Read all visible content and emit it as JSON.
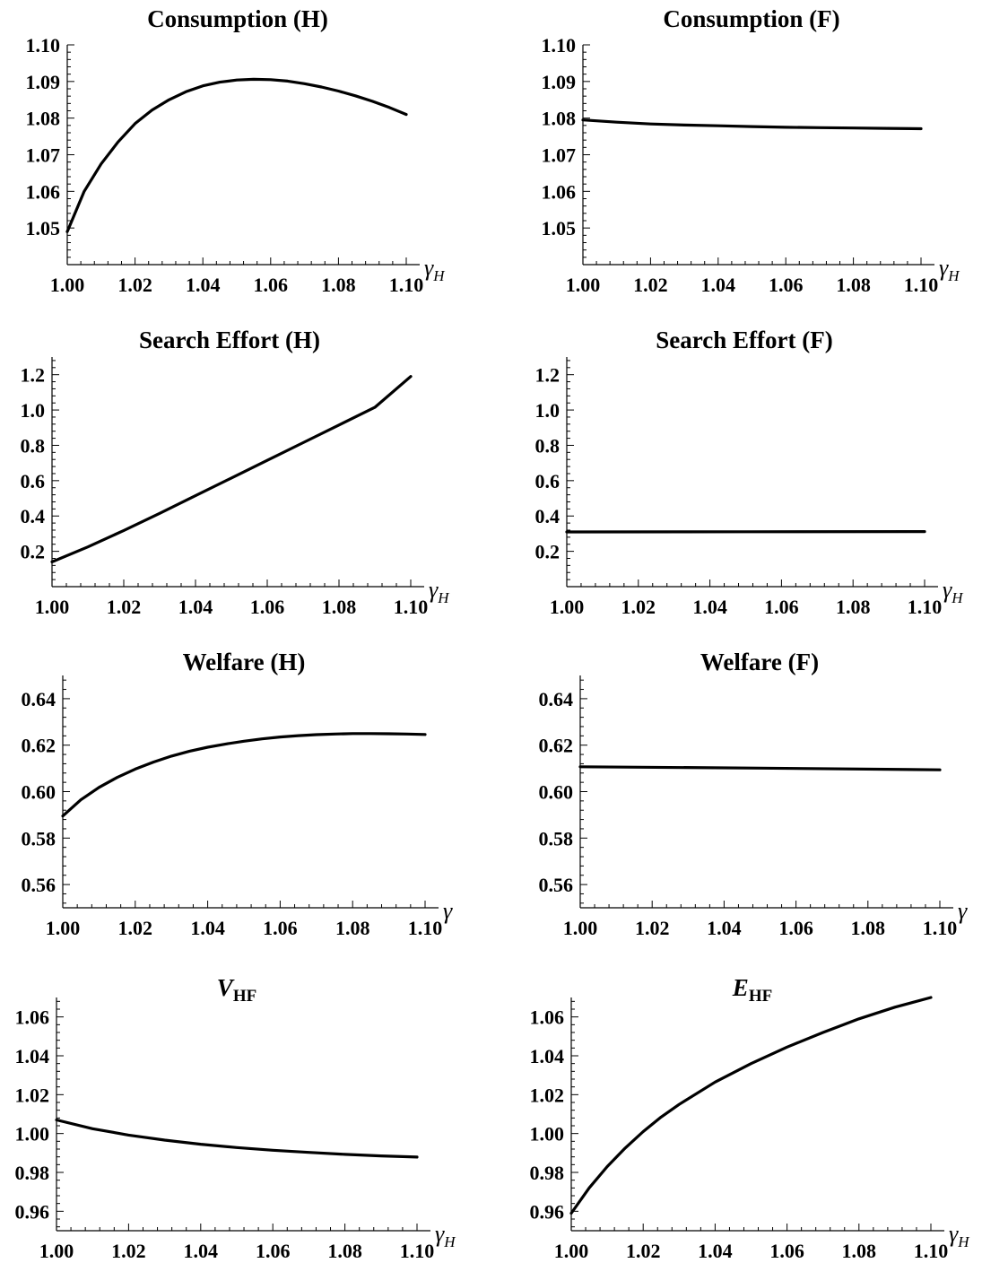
{
  "chart_data": [
    {
      "type": "line",
      "title": "Consumption (H)",
      "xlabel": {
        "main": "γ",
        "sub": "H"
      },
      "xlim": [
        1.0,
        1.1
      ],
      "ylim": [
        1.04,
        1.1
      ],
      "xticks": [
        "1.00",
        "1.02",
        "1.04",
        "1.06",
        "1.08",
        "1.10"
      ],
      "yticks": [
        "1.05",
        "1.06",
        "1.07",
        "1.08",
        "1.09",
        "1.10"
      ],
      "series": [
        {
          "x": [
            1.0,
            1.005,
            1.01,
            1.015,
            1.02,
            1.025,
            1.03,
            1.035,
            1.04,
            1.045,
            1.05,
            1.055,
            1.06,
            1.065,
            1.07,
            1.075,
            1.08,
            1.085,
            1.09,
            1.095,
            1.1
          ],
          "y": [
            1.049,
            1.06,
            1.0675,
            1.0735,
            1.0785,
            1.0822,
            1.085,
            1.0872,
            1.0888,
            1.0898,
            1.0904,
            1.0906,
            1.0905,
            1.0901,
            1.0894,
            1.0885,
            1.0874,
            1.0861,
            1.0846,
            1.0829,
            1.081
          ]
        }
      ]
    },
    {
      "type": "line",
      "title": "Consumption (F)",
      "xlabel": {
        "main": "γ",
        "sub": "H"
      },
      "xlim": [
        1.0,
        1.1
      ],
      "ylim": [
        1.04,
        1.1
      ],
      "xticks": [
        "1.00",
        "1.02",
        "1.04",
        "1.06",
        "1.08",
        "1.10"
      ],
      "yticks": [
        "1.05",
        "1.06",
        "1.07",
        "1.08",
        "1.09",
        "1.10"
      ],
      "series": [
        {
          "x": [
            1.0,
            1.01,
            1.02,
            1.03,
            1.04,
            1.05,
            1.06,
            1.07,
            1.08,
            1.09,
            1.1
          ],
          "y": [
            1.0795,
            1.0789,
            1.0784,
            1.0781,
            1.0779,
            1.0777,
            1.0775,
            1.0774,
            1.0773,
            1.0772,
            1.0771
          ]
        }
      ]
    },
    {
      "type": "line",
      "title": "Search Effort (H)",
      "xlabel": {
        "main": "γ",
        "sub": "H"
      },
      "xlim": [
        1.0,
        1.1
      ],
      "ylim": [
        0.0,
        1.3
      ],
      "xticks": [
        "1.00",
        "1.02",
        "1.04",
        "1.06",
        "1.08",
        "1.10"
      ],
      "yticks": [
        "0.2",
        "0.4",
        "0.6",
        "0.8",
        "1.0",
        "1.2"
      ],
      "series": [
        {
          "x": [
            1.0,
            1.01,
            1.02,
            1.03,
            1.04,
            1.05,
            1.06,
            1.07,
            1.08,
            1.09,
            1.1
          ],
          "y": [
            0.14,
            0.225,
            0.318,
            0.415,
            0.515,
            0.615,
            0.715,
            0.815,
            0.915,
            1.015,
            1.19
          ]
        }
      ]
    },
    {
      "type": "line",
      "title": "Search Effort (F)",
      "xlabel": {
        "main": "γ",
        "sub": "H"
      },
      "xlim": [
        1.0,
        1.1
      ],
      "ylim": [
        0.0,
        1.3
      ],
      "xticks": [
        "1.00",
        "1.02",
        "1.04",
        "1.06",
        "1.08",
        "1.10"
      ],
      "yticks": [
        "0.2",
        "0.4",
        "0.6",
        "0.8",
        "1.0",
        "1.2"
      ],
      "series": [
        {
          "x": [
            1.0,
            1.05,
            1.1
          ],
          "y": [
            0.31,
            0.311,
            0.312
          ]
        }
      ]
    },
    {
      "type": "line",
      "title": "Welfare (H)",
      "xlabel": {
        "main": "γ",
        "sub": ""
      },
      "xlim": [
        1.0,
        1.1
      ],
      "ylim": [
        0.55,
        0.65
      ],
      "xticks": [
        "1.00",
        "1.02",
        "1.04",
        "1.06",
        "1.08",
        "1.10"
      ],
      "yticks": [
        "0.56",
        "0.58",
        "0.60",
        "0.62",
        "0.64"
      ],
      "series": [
        {
          "x": [
            1.0,
            1.005,
            1.01,
            1.015,
            1.02,
            1.025,
            1.03,
            1.035,
            1.04,
            1.045,
            1.05,
            1.055,
            1.06,
            1.065,
            1.07,
            1.075,
            1.08,
            1.085,
            1.09,
            1.095,
            1.1
          ],
          "y": [
            0.5895,
            0.5965,
            0.6018,
            0.6061,
            0.6097,
            0.6127,
            0.6153,
            0.6174,
            0.6191,
            0.6205,
            0.6217,
            0.6227,
            0.6235,
            0.6241,
            0.6245,
            0.6248,
            0.625,
            0.625,
            0.6249,
            0.6248,
            0.6246
          ]
        }
      ]
    },
    {
      "type": "line",
      "title": "Welfare (F)",
      "xlabel": {
        "main": "γ",
        "sub": ""
      },
      "xlim": [
        1.0,
        1.1
      ],
      "ylim": [
        0.55,
        0.65
      ],
      "xticks": [
        "1.00",
        "1.02",
        "1.04",
        "1.06",
        "1.08",
        "1.10"
      ],
      "yticks": [
        "0.56",
        "0.58",
        "0.60",
        "0.62",
        "0.64"
      ],
      "series": [
        {
          "x": [
            1.0,
            1.05,
            1.1
          ],
          "y": [
            0.6107,
            0.6101,
            0.6094
          ]
        }
      ]
    },
    {
      "type": "line",
      "title": {
        "main": "V",
        "sub": "HF"
      },
      "xlabel": {
        "main": "γ",
        "sub": "H"
      },
      "xlim": [
        1.0,
        1.1
      ],
      "ylim": [
        0.95,
        1.07
      ],
      "xticks": [
        "1.00",
        "1.02",
        "1.04",
        "1.06",
        "1.08",
        "1.10"
      ],
      "yticks": [
        "0.96",
        "0.98",
        "1.00",
        "1.02",
        "1.04",
        "1.06"
      ],
      "series": [
        {
          "x": [
            1.0,
            1.01,
            1.02,
            1.03,
            1.04,
            1.05,
            1.06,
            1.07,
            1.08,
            1.09,
            1.1
          ],
          "y": [
            1.007,
            1.0025,
            0.9992,
            0.9966,
            0.9945,
            0.9928,
            0.9914,
            0.9903,
            0.9893,
            0.9885,
            0.9879
          ]
        }
      ]
    },
    {
      "type": "line",
      "title": {
        "main": "E",
        "sub": "HF"
      },
      "xlabel": {
        "main": "γ",
        "sub": "H"
      },
      "xlim": [
        1.0,
        1.1
      ],
      "ylim": [
        0.95,
        1.07
      ],
      "xticks": [
        "1.00",
        "1.02",
        "1.04",
        "1.06",
        "1.08",
        "1.10"
      ],
      "yticks": [
        "0.96",
        "0.98",
        "1.00",
        "1.02",
        "1.04",
        "1.06"
      ],
      "series": [
        {
          "x": [
            1.0,
            1.005,
            1.01,
            1.015,
            1.02,
            1.025,
            1.03,
            1.04,
            1.05,
            1.06,
            1.07,
            1.08,
            1.09,
            1.1
          ],
          "y": [
            0.959,
            0.972,
            0.983,
            0.9925,
            1.001,
            1.0085,
            1.015,
            1.0265,
            1.036,
            1.0445,
            1.052,
            1.059,
            1.065,
            1.07
          ]
        }
      ]
    }
  ]
}
